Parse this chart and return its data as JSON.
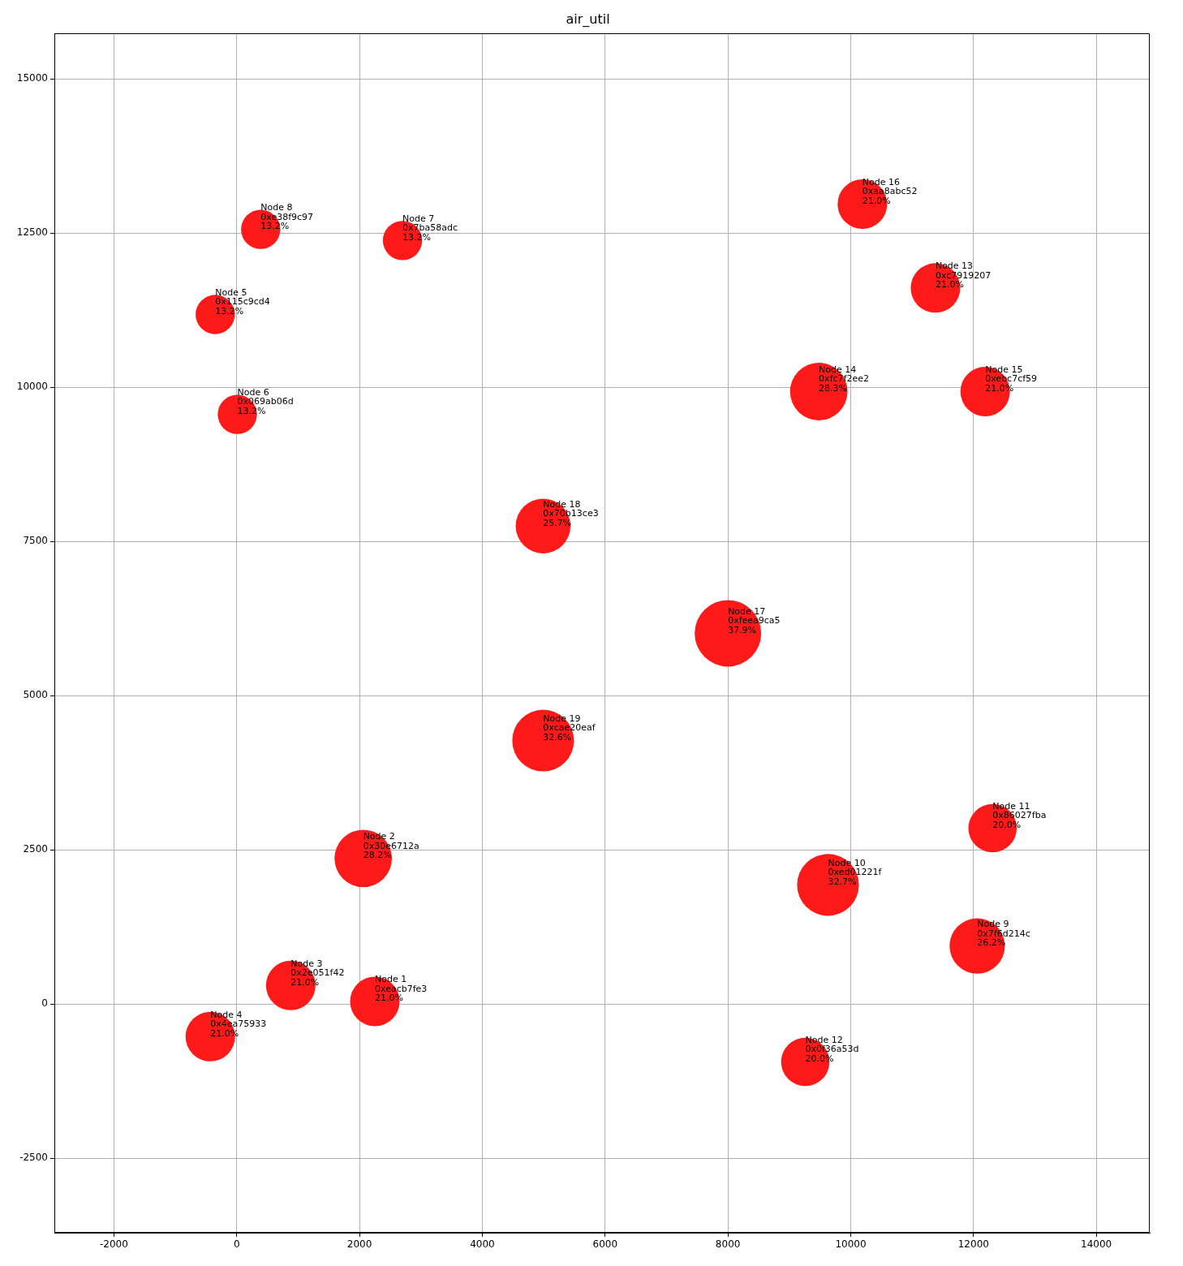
{
  "chart_data": {
    "type": "bubble",
    "title": "air_util",
    "x": [
      2250,
      2060,
      880,
      -430,
      -350,
      10,
      2700,
      390,
      12060,
      9630,
      12310,
      9260,
      11380,
      9480,
      12190,
      10190,
      8000,
      4990,
      4990
    ],
    "values": [
      40,
      2360,
      300,
      -530,
      11180,
      9560,
      12380,
      12560,
      940,
      1930,
      2850,
      -940,
      11610,
      9930,
      9930,
      12970,
      6010,
      7750,
      4270
    ],
    "sizes": [
      0.554,
      0.744,
      0.554,
      0.554,
      0.348,
      0.348,
      0.348,
      0.348,
      0.691,
      0.863,
      0.528,
      0.528,
      0.554,
      0.747,
      0.554,
      0.554,
      1,
      0.678,
      0.86
    ],
    "value_labels": [
      "Node 1\n0xeacb7fe3\n21.0%",
      "Node 2\n0x30e6712a\n28.2%",
      "Node 3\n0x2e051f42\n21.0%",
      "Node 4\n0x4ea75933\n21.0%",
      "Node 5\n0x115c9cd4\n13.2%",
      "Node 6\n0x069ab06d\n13.2%",
      "Node 7\n0x7ba58adc\n13.2%",
      "Node 8\n0xe38f9c97\n13.2%",
      "Node 9\n0x7f6d214c\n26.2%",
      "Node 10\n0xed01221f\n32.7%",
      "Node 11\n0x86027fba\n20.0%",
      "Node 12\n0x0f36a53d\n20.0%",
      "Node 13\n0xc7919207\n21.0%",
      "Node 14\n0xfc7f2ee2\n28.3%",
      "Node 15\n0xebc7cf59\n21.0%",
      "Node 16\n0xaa8abc52\n21.0%",
      "Node 17\n0xfeea9ca5\n37.9%",
      "Node 18\n0x70b13ce3\n25.7%",
      "Node 19\n0xcae20eaf\n32.6%"
    ],
    "color": "#ff1a1a",
    "xlim": [
      -2970,
      14870
    ],
    "ylim": [
      -3710,
      15740
    ],
    "xticks": [
      -2000,
      0,
      2000,
      4000,
      6000,
      8000,
      10000,
      12000,
      14000
    ],
    "yticks": [
      -2500,
      0,
      2500,
      5000,
      7500,
      10000,
      12500,
      15000
    ],
    "grid": true,
    "legend": false
  }
}
